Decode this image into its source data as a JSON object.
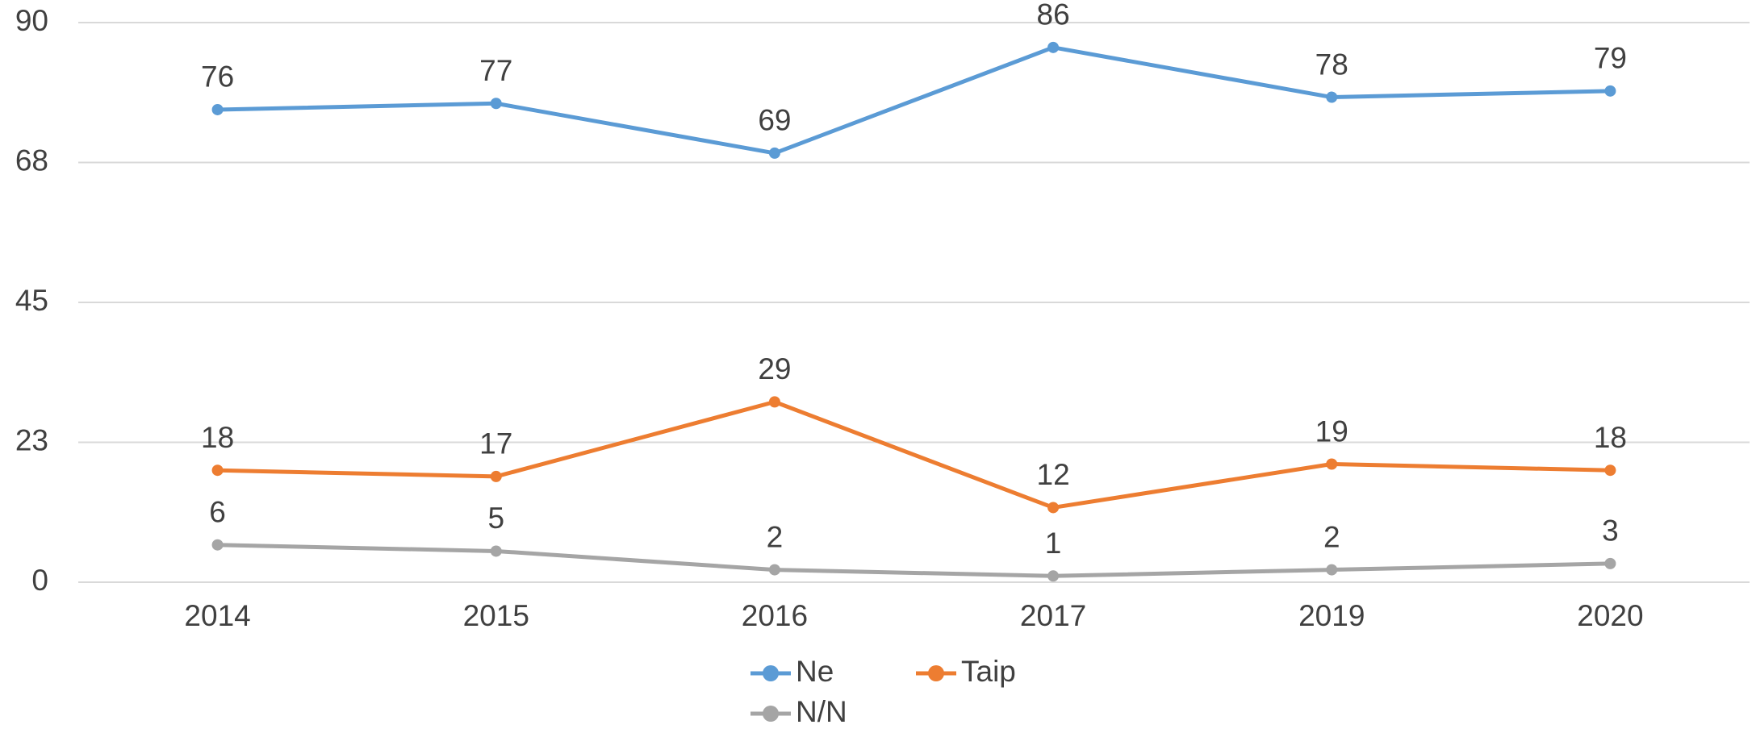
{
  "chart_data": {
    "type": "line",
    "categories": [
      "2014",
      "2015",
      "2016",
      "2017",
      "2019",
      "2020"
    ],
    "series": [
      {
        "name": "Ne",
        "color": "#5b9bd5",
        "values": [
          76,
          77,
          69,
          86,
          78,
          79
        ]
      },
      {
        "name": "Taip",
        "color": "#ed7d31",
        "values": [
          18,
          17,
          29,
          12,
          19,
          18
        ]
      },
      {
        "name": "N/N",
        "color": "#a5a5a5",
        "values": [
          6,
          5,
          2,
          1,
          2,
          3
        ]
      }
    ],
    "ylim": [
      0,
      90
    ],
    "yticks": [
      0,
      {
        "value": 22.5,
        "label": "23"
      },
      45,
      {
        "value": 67.5,
        "label": "68"
      },
      90
    ],
    "grid": true,
    "legend": "bottom"
  }
}
